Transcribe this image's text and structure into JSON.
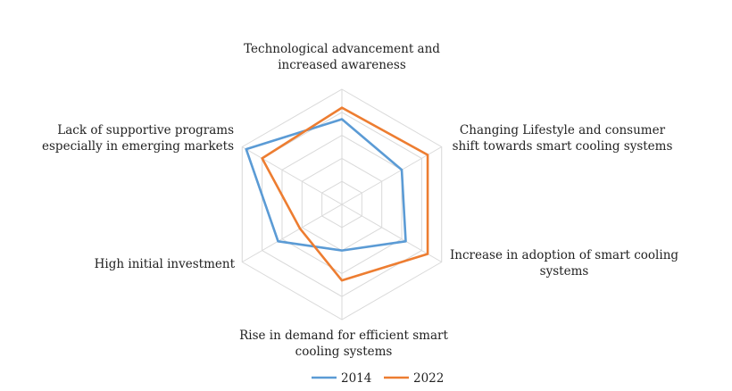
{
  "chart_data": {
    "type": "radar",
    "title": "",
    "categories": [
      [
        "Technological advancement and",
        "increased awareness"
      ],
      [
        "Changing Lifestyle and consumer",
        "shift towards smart cooling systems"
      ],
      [
        "Increase in adoption of smart cooling",
        "systems"
      ],
      [
        "Rise in demand for efficient smart",
        "cooling systems"
      ],
      [
        "High initial investment"
      ],
      [
        "Lack of supportive programs",
        "especially in emerging markets"
      ]
    ],
    "rlim": [
      0,
      5
    ],
    "grid": true,
    "legend": "bottom",
    "series": [
      {
        "name": "2014",
        "color": "#5b9bd5",
        "values": [
          3.7,
          3.0,
          3.2,
          2.0,
          3.2,
          4.8
        ]
      },
      {
        "name": "2022",
        "color": "#ed7d31",
        "values": [
          4.2,
          4.3,
          4.3,
          3.3,
          2.1,
          4.0
        ]
      }
    ]
  }
}
